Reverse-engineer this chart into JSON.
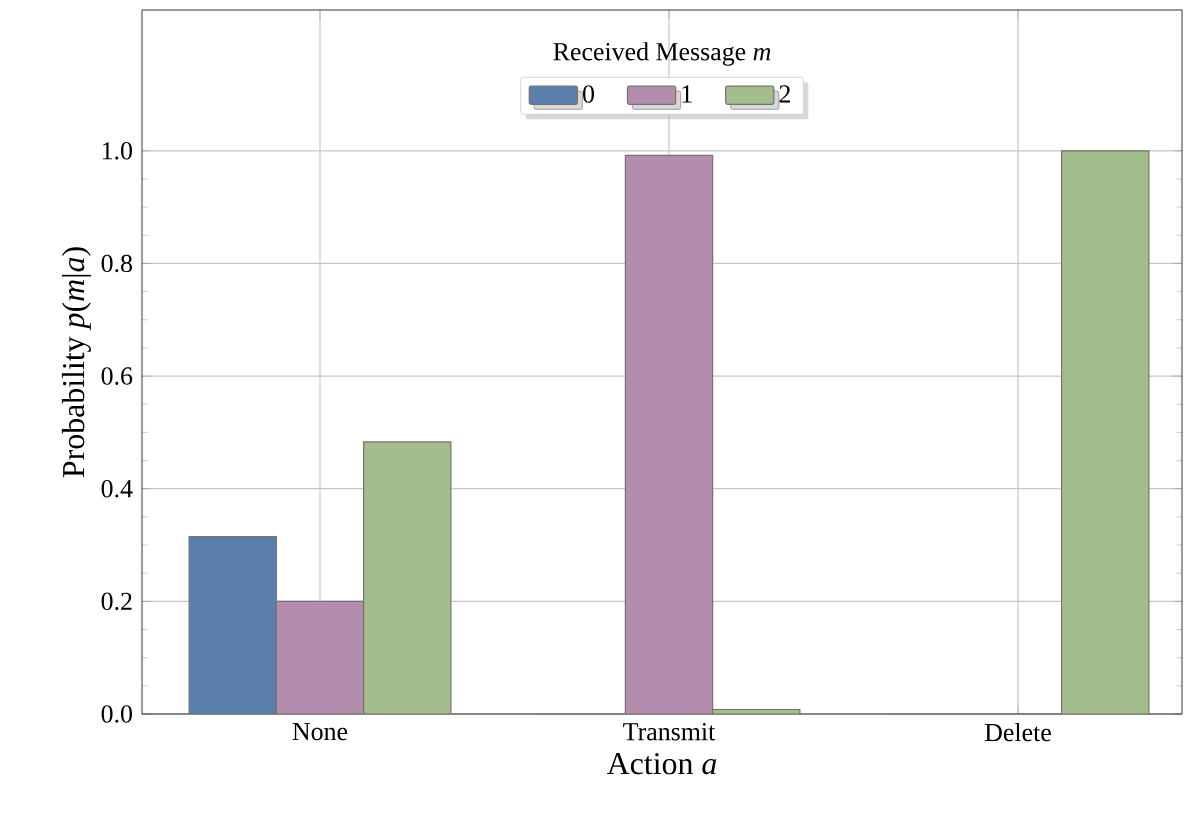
{
  "chart_data": {
    "type": "bar",
    "xlabel": "Action *a*",
    "ylabel": "Probability *p*(*m*|*a*)",
    "legend_title": "Received Message *m*",
    "categories": [
      "None",
      "Transmit",
      "Delete"
    ],
    "series": [
      {
        "name": "0",
        "color": "#5b7fac",
        "values": [
          0.315,
          0,
          0
        ]
      },
      {
        "name": "1",
        "color": "#b48cae",
        "values": [
          0.2,
          0.992,
          0
        ]
      },
      {
        "name": "2",
        "color": "#a3be8c",
        "values": [
          0.483,
          0.008,
          1.0
        ]
      }
    ],
    "ylim": [
      0,
      1.25
    ],
    "yticks": [
      {
        "value": 0,
        "label": "0.0"
      },
      {
        "value": 0.2,
        "label": "0.2"
      },
      {
        "value": 0.4,
        "label": "0.4"
      },
      {
        "value": 0.6,
        "label": "0.6"
      },
      {
        "value": 0.8,
        "label": "0.8"
      },
      {
        "value": 1.0,
        "label": "1.0"
      }
    ],
    "grid": true,
    "legend": "top"
  }
}
